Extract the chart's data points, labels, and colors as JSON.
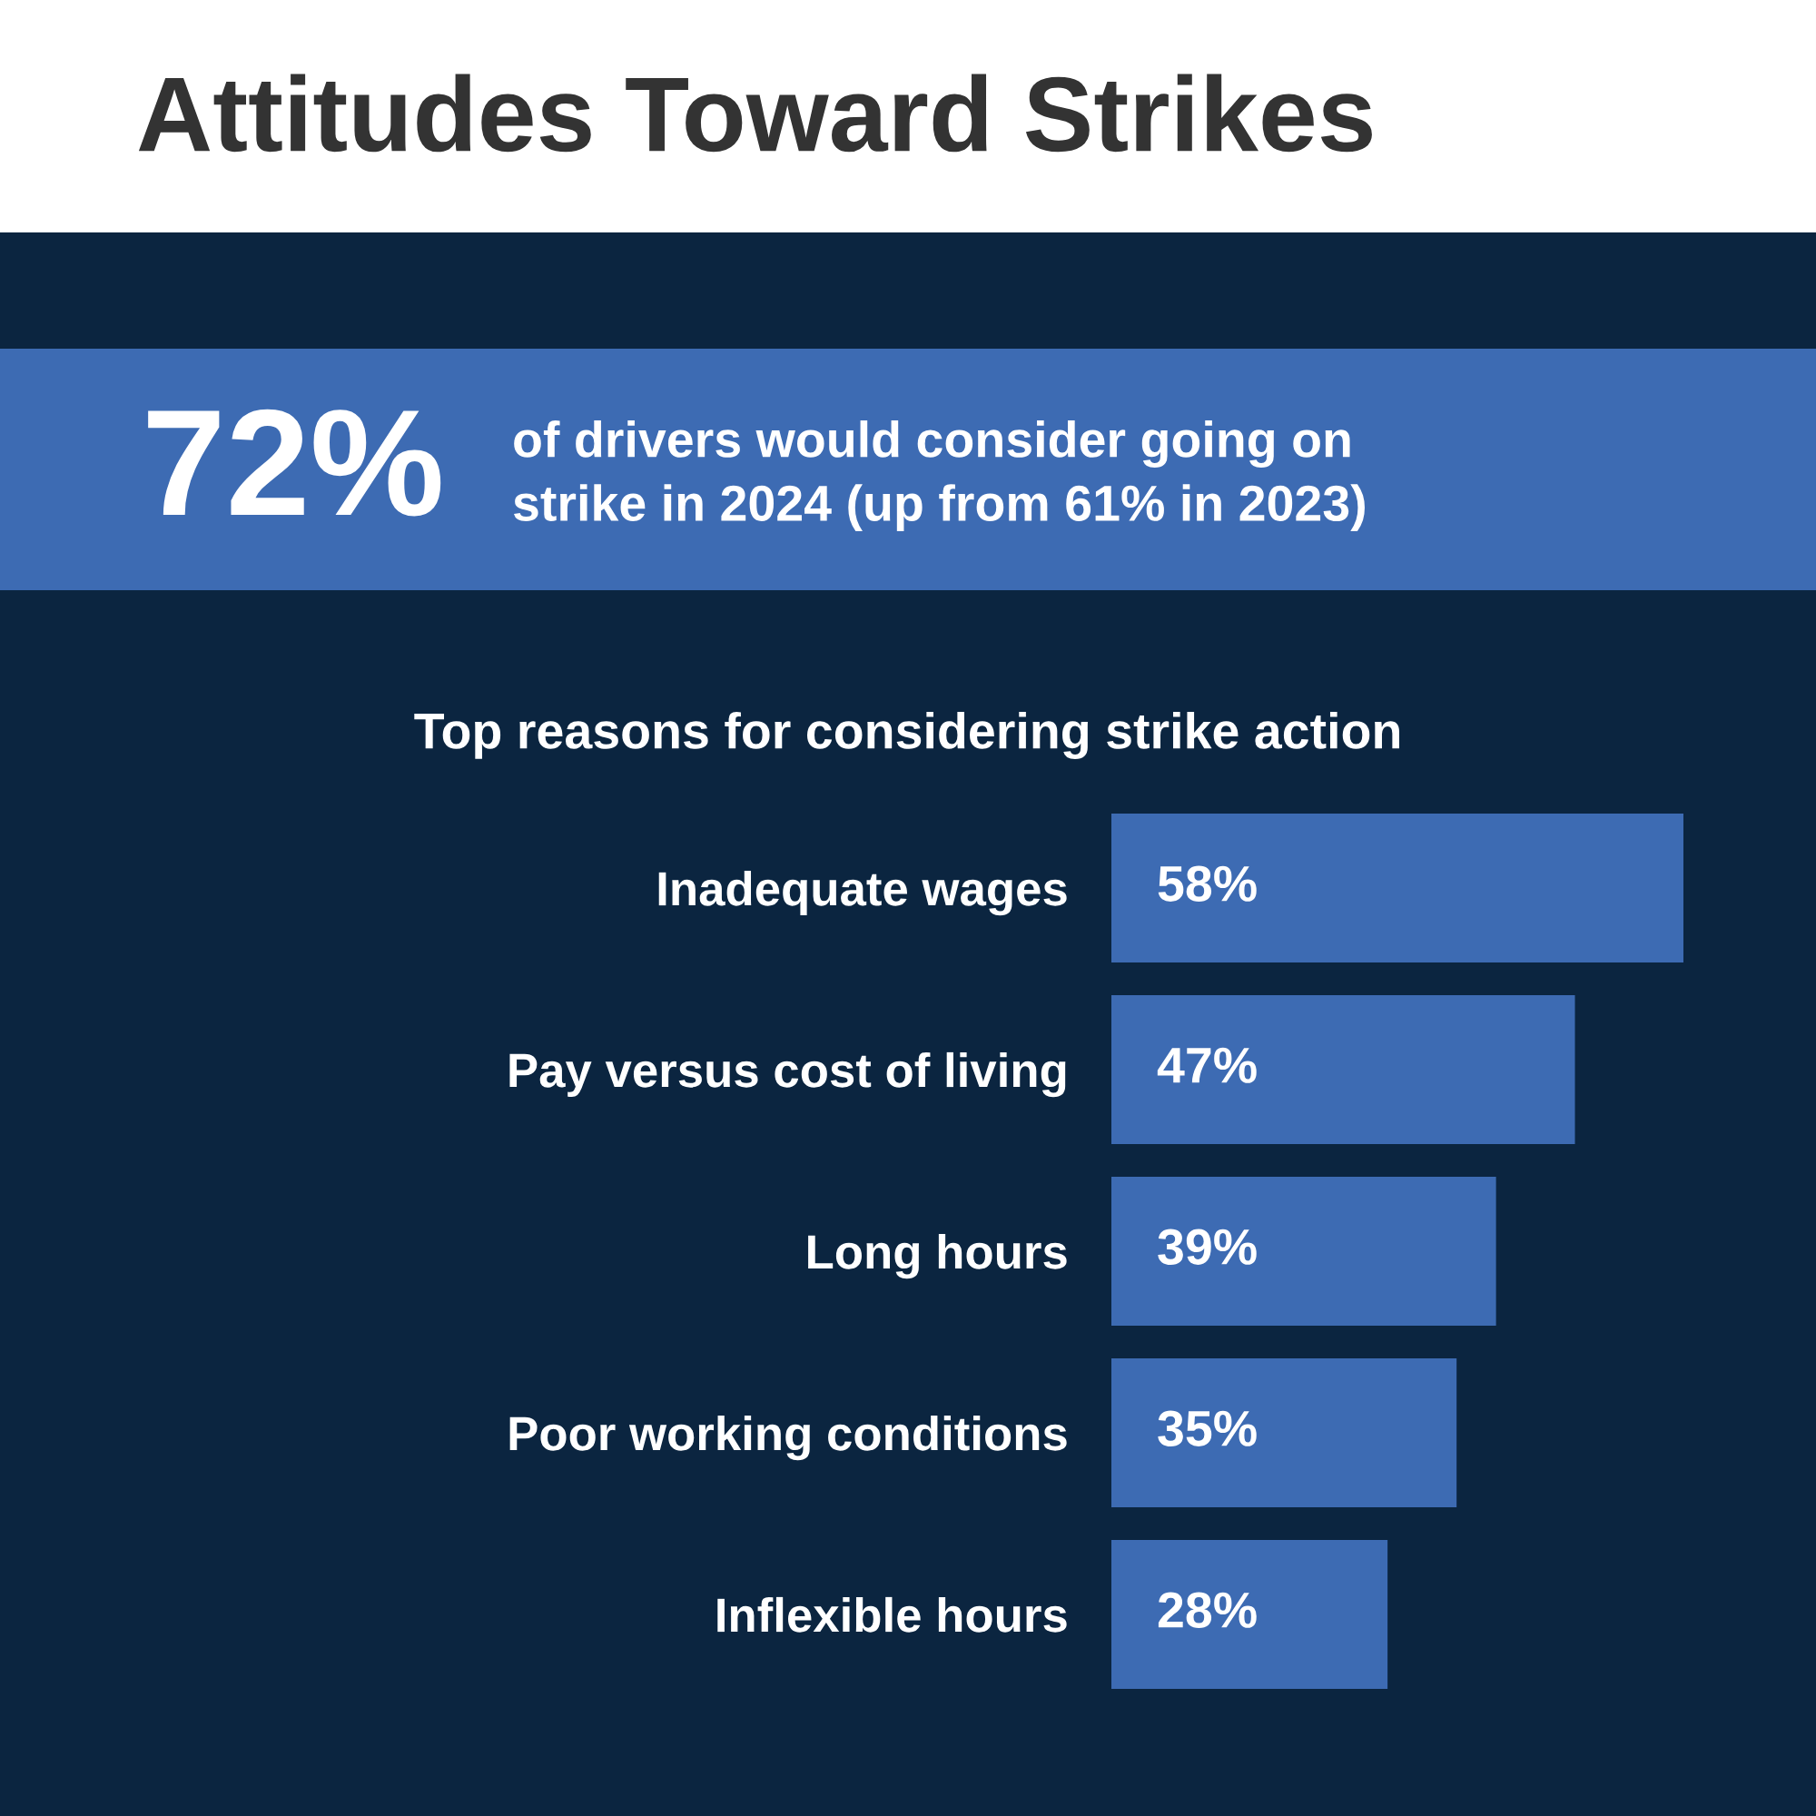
{
  "chart_data": {
    "type": "bar",
    "orientation": "horizontal",
    "title": "Attitudes Toward Strikes",
    "subtitle": "Top reasons for considering strike action",
    "annotations": [
      "72%",
      "of drivers would consider going on\nstrike in 2024 (up from 61% in 2023)"
    ],
    "categories": [
      "Inadequate wages",
      "Pay versus cost of living",
      "Long hours",
      "Poor working conditions",
      "Inflexible hours"
    ],
    "values": [
      58,
      47,
      39,
      35,
      28
    ],
    "value_labels": [
      "58%",
      "47%",
      "39%",
      "35%",
      "28%"
    ],
    "color": "#3d6bb3"
  }
}
